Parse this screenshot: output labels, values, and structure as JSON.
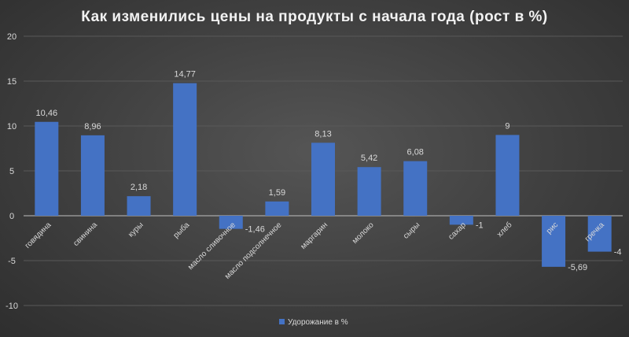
{
  "chart_data": {
    "type": "bar",
    "title": "Как изменились цены на продукты с начала года (рост в %)",
    "categories": [
      "говядина",
      "свинина",
      "куры",
      "рыба",
      "масло сливочное",
      "масло подсолнечное",
      "маргарин",
      "молоко",
      "сыры",
      "сахар",
      "хлеб",
      "рис",
      "гречка"
    ],
    "series": [
      {
        "name": "Удорожание в %",
        "values": [
          10.46,
          8.96,
          2.18,
          14.77,
          -1.46,
          1.59,
          8.13,
          5.42,
          6.08,
          -1,
          9,
          -5.69,
          -4
        ]
      }
    ],
    "data_labels": [
      "10,46",
      "8,96",
      "2,18",
      "14,77",
      "-1,46",
      "1,59",
      "8,13",
      "5,42",
      "6,08",
      "-1",
      "9",
      "-5,69",
      "-4"
    ],
    "yticks": [
      -10,
      -5,
      0,
      5,
      10,
      15,
      20
    ],
    "ylim": [
      -12.5,
      20
    ],
    "grid": true,
    "legend": "bottom",
    "colors": {
      "bar": "#4472c4",
      "text": "#d9d9d9",
      "grid": "#595959"
    }
  }
}
